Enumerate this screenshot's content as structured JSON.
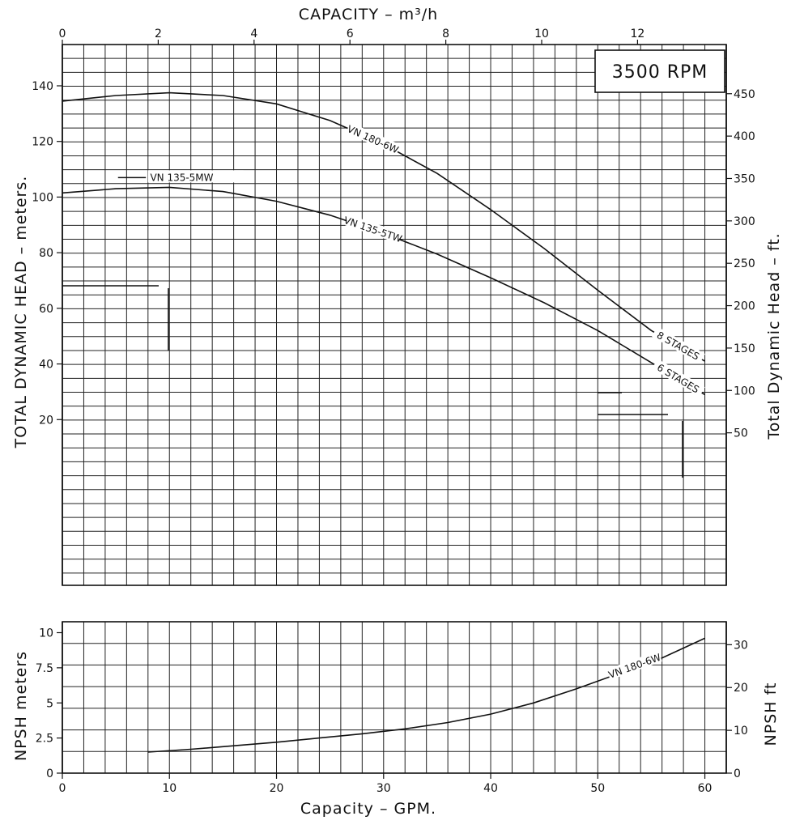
{
  "chart_data": [
    {
      "type": "line",
      "name": "head",
      "x_top": {
        "label": "CAPACITY  – m³/h",
        "ticks": [
          "0",
          "2",
          "4",
          "6",
          "8",
          "10",
          "12"
        ],
        "values": [
          0,
          2,
          4,
          6,
          8,
          10,
          12
        ]
      },
      "y_left": {
        "label": "TOTAL DYNAMIC HEAD – meters.",
        "ticks": [
          "20",
          "40",
          "60",
          "80",
          "100",
          "120",
          "140"
        ],
        "values": [
          20,
          40,
          60,
          80,
          100,
          120,
          140
        ],
        "range": [
          -60,
          150
        ]
      },
      "y_right": {
        "label": "Total Dynamic Head – ft.",
        "ticks": [
          "50",
          "100",
          "150",
          "200",
          "250",
          "300",
          "350",
          "400",
          "450"
        ],
        "values": [
          50,
          100,
          150,
          200,
          250,
          300,
          350,
          400,
          450
        ]
      },
      "annotation": "3500  RPM",
      "x_range_gpm": [
        0,
        62
      ],
      "grid": true,
      "series": [
        {
          "name": "VN 180-6W",
          "stages_label": "8 STAGES",
          "x": [
            0,
            5,
            10,
            15,
            20,
            25,
            30,
            35,
            40,
            45,
            50,
            55,
            60
          ],
          "y": [
            134.5,
            136.5,
            137.5,
            136.5,
            133.5,
            127.5,
            119,
            108.5,
            95.5,
            81.5,
            66.5,
            52,
            41
          ]
        },
        {
          "name": "VN 135-5TW",
          "alt_name": "VN 135-5MW",
          "stages_label": "6 STAGES",
          "x": [
            0,
            5,
            10,
            15,
            20,
            25,
            30,
            35,
            40,
            45,
            50,
            55,
            60
          ],
          "y": [
            101.5,
            103,
            103.5,
            102,
            98.5,
            93.5,
            87,
            79.5,
            71,
            62,
            52,
            40.5,
            29
          ]
        }
      ]
    },
    {
      "type": "line",
      "name": "npsh",
      "x": {
        "label": "Capacity  –  GPM.",
        "ticks": [
          "0",
          "10",
          "20",
          "30",
          "40",
          "50",
          "60"
        ],
        "values": [
          0,
          10,
          20,
          30,
          40,
          50,
          60
        ]
      },
      "y_left": {
        "label": "NPSH  meters",
        "ticks": [
          "0",
          "2.5",
          "5",
          "7.5",
          "10"
        ],
        "values": [
          0,
          2.5,
          5,
          7.5,
          10
        ],
        "range": [
          0,
          10.5
        ]
      },
      "y_right": {
        "label": "NPSH  ft",
        "ticks": [
          "0",
          "10",
          "20",
          "30"
        ],
        "values": [
          0,
          10,
          20,
          30
        ]
      },
      "grid": true,
      "series": [
        {
          "name": "VN 180-6W",
          "x": [
            8,
            12,
            16,
            20,
            24,
            28,
            32,
            36,
            40,
            44,
            48,
            52,
            56,
            60
          ],
          "y": [
            1.5,
            1.7,
            1.95,
            2.2,
            2.5,
            2.8,
            3.15,
            3.6,
            4.2,
            5.0,
            6.0,
            7.1,
            8.2,
            9.6
          ]
        }
      ]
    }
  ]
}
